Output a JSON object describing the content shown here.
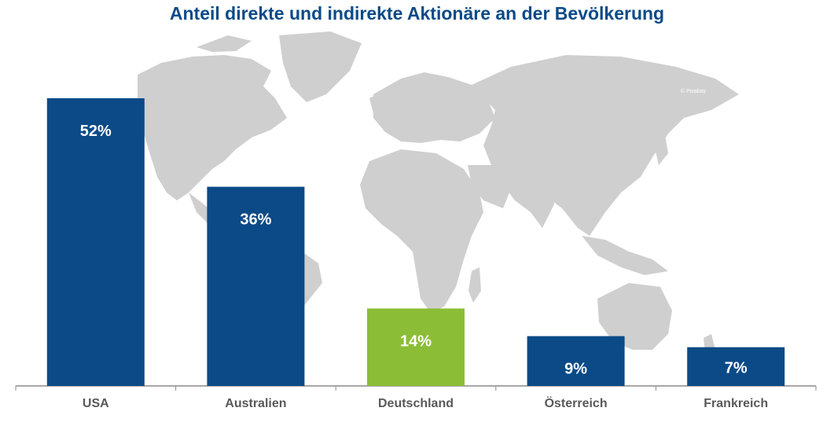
{
  "chart_data": {
    "type": "bar",
    "title": "Anteil direkte und indirekte Aktionäre an der Bevölkerung",
    "categories": [
      "USA",
      "Australien",
      "Deutschland",
      "Österreich",
      "Frankreich"
    ],
    "values": [
      52,
      36,
      14,
      9,
      7
    ],
    "value_labels": [
      "52%",
      "36%",
      "14%",
      "9%",
      "7%"
    ],
    "ylim": [
      0,
      55
    ],
    "grid": false,
    "colors": {
      "default_bar": "#0b4a87",
      "highlight_bar": "#8cbd37",
      "highlight_category": "Deutschland",
      "title": "#0b4a87",
      "map": "#cfcfcf",
      "axis": "#8a8a8a",
      "tick_label": "#595959"
    }
  },
  "background": {
    "image_credit": "© Pixabay"
  }
}
